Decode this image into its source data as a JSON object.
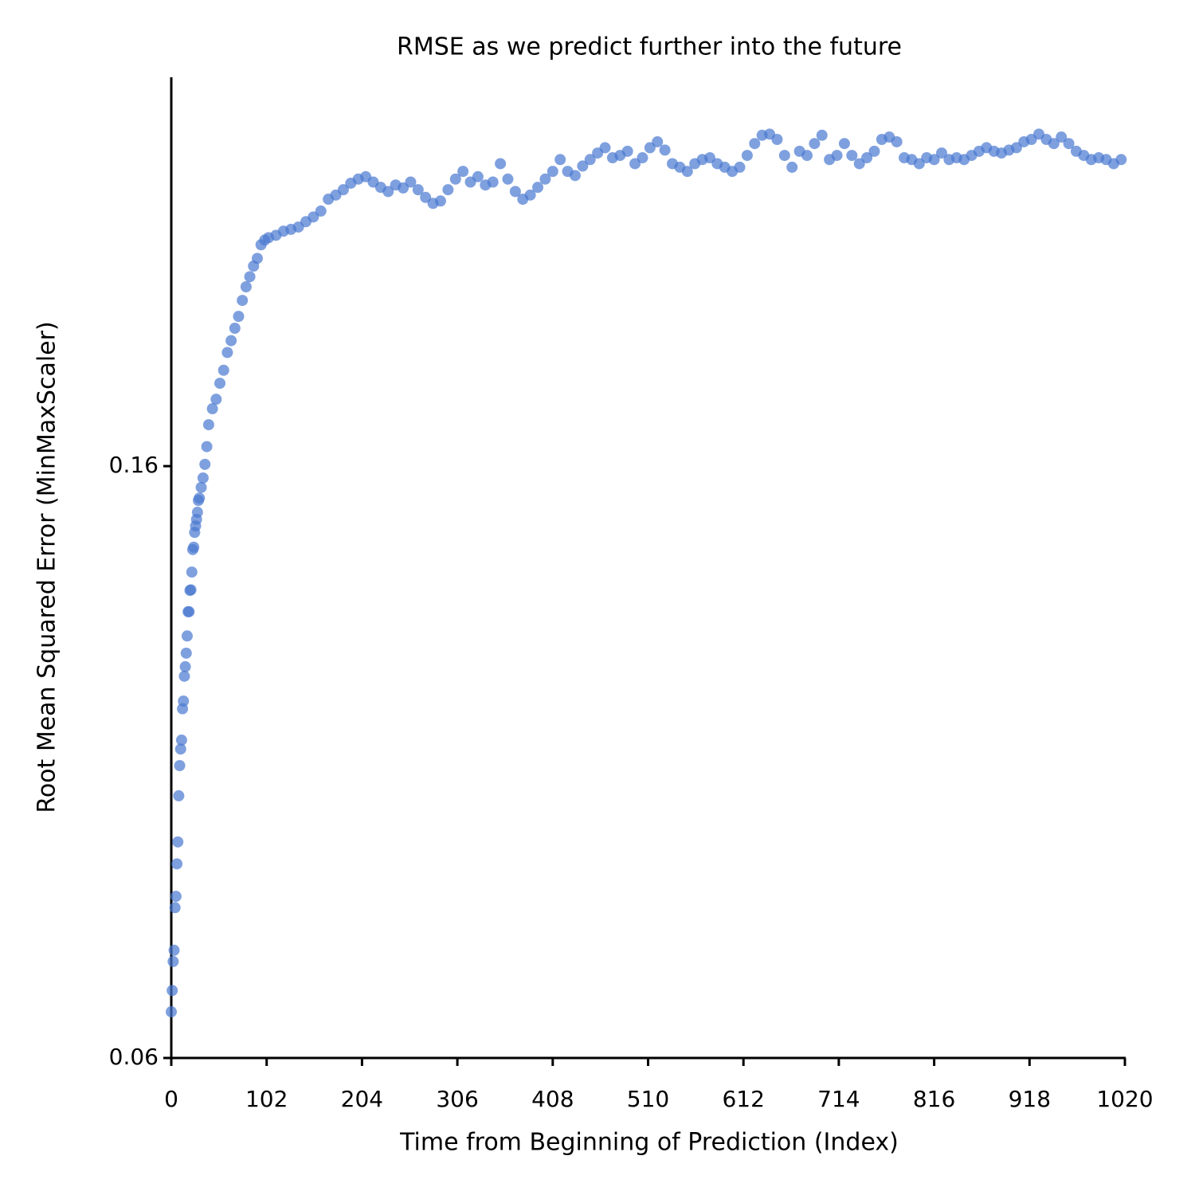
{
  "chart_data": {
    "type": "scatter",
    "title": "RMSE as we predict further into the future",
    "x_label": "Time from Beginning of Prediction (Index)",
    "y_label": "Root Mean Squared Error (MinMaxScaler)",
    "color": "#4878d0",
    "xlim": [
      0,
      1020
    ],
    "ylim": [
      0.06,
      0.2257
    ],
    "xticks": [
      0,
      102,
      204,
      306,
      408,
      510,
      612,
      714,
      816,
      918,
      1020
    ],
    "yticks": [
      0.06,
      0.16
    ],
    "x": [
      0,
      1,
      2,
      3,
      4,
      5,
      6,
      7,
      8,
      9,
      10,
      11,
      12,
      13,
      14,
      15,
      16,
      17,
      18,
      19,
      20,
      21,
      22,
      23,
      24,
      25,
      26,
      27,
      28,
      29,
      30,
      32,
      34,
      36,
      38,
      40,
      44,
      48,
      52,
      56,
      60,
      64,
      68,
      72,
      76,
      80,
      84,
      88,
      92,
      96,
      100,
      104,
      112,
      120,
      128,
      136,
      144,
      152,
      160,
      168,
      176,
      184,
      192,
      200,
      208,
      216,
      224,
      232,
      240,
      248,
      256,
      264,
      272,
      280,
      288,
      296,
      304,
      312,
      320,
      328,
      336,
      344,
      352,
      360,
      368,
      376,
      384,
      392,
      400,
      408,
      416,
      424,
      432,
      440,
      448,
      456,
      464,
      472,
      480,
      488,
      496,
      504,
      512,
      520,
      528,
      536,
      544,
      552,
      560,
      568,
      576,
      584,
      592,
      600,
      608,
      616,
      624,
      632,
      640,
      648,
      656,
      664,
      672,
      680,
      688,
      696,
      704,
      712,
      720,
      728,
      736,
      744,
      752,
      760,
      768,
      776,
      784,
      792,
      800,
      808,
      816,
      824,
      832,
      840,
      848,
      856,
      864,
      872,
      880,
      888,
      896,
      904,
      912,
      920,
      928,
      936,
      944,
      952,
      960,
      968,
      976,
      984,
      992,
      1000,
      1008,
      1016
    ],
    "values": [
      0.0678,
      0.0714,
      0.0763,
      0.0782,
      0.0854,
      0.0873,
      0.0928,
      0.0965,
      0.1043,
      0.1094,
      0.1122,
      0.1137,
      0.119,
      0.1203,
      0.1245,
      0.1261,
      0.1284,
      0.1313,
      0.1354,
      0.1354,
      0.139,
      0.1391,
      0.1421,
      0.1459,
      0.1463,
      0.1488,
      0.1499,
      0.151,
      0.1522,
      0.1542,
      0.1546,
      0.1564,
      0.158,
      0.1603,
      0.1633,
      0.167,
      0.1697,
      0.1713,
      0.174,
      0.1762,
      0.1792,
      0.1812,
      0.1833,
      0.1853,
      0.188,
      0.1903,
      0.192,
      0.1938,
      0.1951,
      0.1974,
      0.1982,
      0.1986,
      0.199,
      0.1997,
      0.2,
      0.2004,
      0.2013,
      0.2021,
      0.2031,
      0.2051,
      0.2058,
      0.2067,
      0.2078,
      0.2085,
      0.2089,
      0.208,
      0.2071,
      0.2064,
      0.2075,
      0.207,
      0.208,
      0.2067,
      0.2054,
      0.2044,
      0.2048,
      0.2067,
      0.2085,
      0.2098,
      0.208,
      0.2089,
      0.2075,
      0.208,
      0.2111,
      0.2085,
      0.2064,
      0.2051,
      0.2058,
      0.2071,
      0.2085,
      0.2098,
      0.2118,
      0.2098,
      0.2091,
      0.2107,
      0.2118,
      0.2129,
      0.2138,
      0.2121,
      0.2125,
      0.2132,
      0.2111,
      0.2121,
      0.2138,
      0.2148,
      0.2134,
      0.2111,
      0.2105,
      0.2098,
      0.2111,
      0.2118,
      0.2121,
      0.2111,
      0.2105,
      0.2098,
      0.2105,
      0.2125,
      0.2145,
      0.2159,
      0.2161,
      0.2152,
      0.2125,
      0.2105,
      0.2132,
      0.2125,
      0.2145,
      0.2159,
      0.2118,
      0.2125,
      0.2145,
      0.2125,
      0.2111,
      0.2121,
      0.2132,
      0.2152,
      0.2156,
      0.2148,
      0.2121,
      0.2118,
      0.2111,
      0.2121,
      0.2118,
      0.2129,
      0.2118,
      0.2121,
      0.2118,
      0.2125,
      0.2132,
      0.2138,
      0.2132,
      0.2129,
      0.2134,
      0.2138,
      0.2148,
      0.2152,
      0.2161,
      0.2152,
      0.2145,
      0.2156,
      0.2145,
      0.2132,
      0.2125,
      0.2118,
      0.2121,
      0.2118,
      0.2111,
      0.2118
    ]
  }
}
